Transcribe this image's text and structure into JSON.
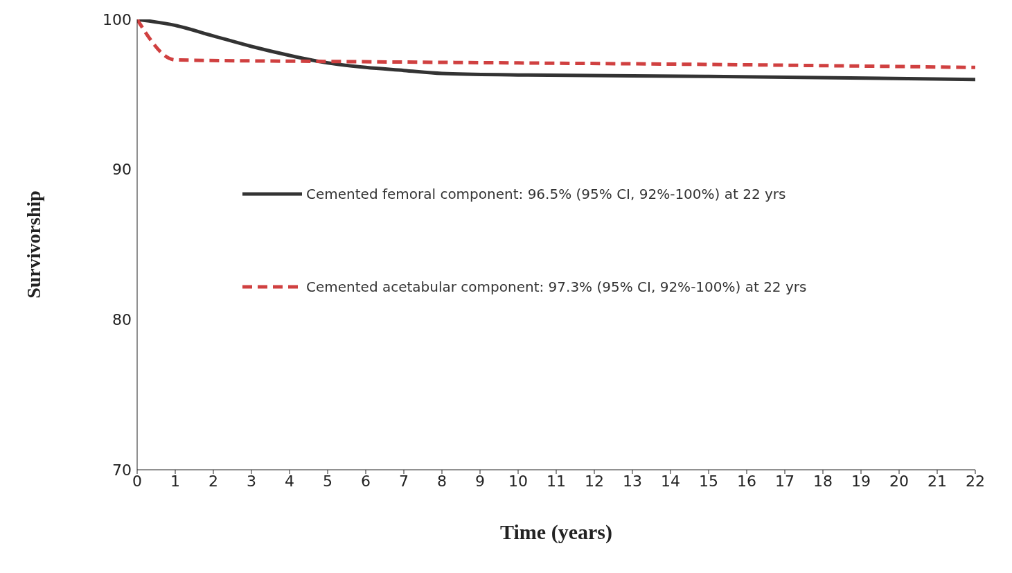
{
  "chart_data": {
    "type": "line",
    "xlabel": "Time (years)",
    "ylabel": "Survivorship",
    "xlim": [
      0,
      22
    ],
    "xticks": [
      0,
      1,
      2,
      3,
      4,
      5,
      6,
      7,
      8,
      9,
      10,
      11,
      12,
      13,
      14,
      15,
      16,
      17,
      18,
      19,
      20,
      21,
      22
    ],
    "ylim": [
      70,
      100
    ],
    "yticks": [
      70,
      80,
      90,
      100
    ],
    "grid": false,
    "legend": "left",
    "marker": "none",
    "series": [
      {
        "name": "Cemented femoral component: 96.5% (95% CI, 92%-100%) at 22 yrs",
        "color": "#333333",
        "line_style": "solid",
        "x": [
          0,
          1,
          2,
          3,
          4,
          5,
          6,
          7,
          8,
          10,
          15,
          22
        ],
        "values": [
          100,
          99.6,
          98.9,
          98.2,
          97.6,
          97.1,
          96.8,
          96.6,
          96.4,
          96.3,
          96.2,
          96.0
        ]
      },
      {
        "name": "Cemented acetabular component: 97.3% (95% CI, 92%-100%) at 22 yrs",
        "color": "#d04040",
        "line_style": "dashed",
        "x": [
          0,
          1,
          5,
          10,
          15,
          22
        ],
        "values": [
          100,
          97.3,
          97.2,
          97.1,
          97.0,
          96.8
        ]
      }
    ]
  }
}
